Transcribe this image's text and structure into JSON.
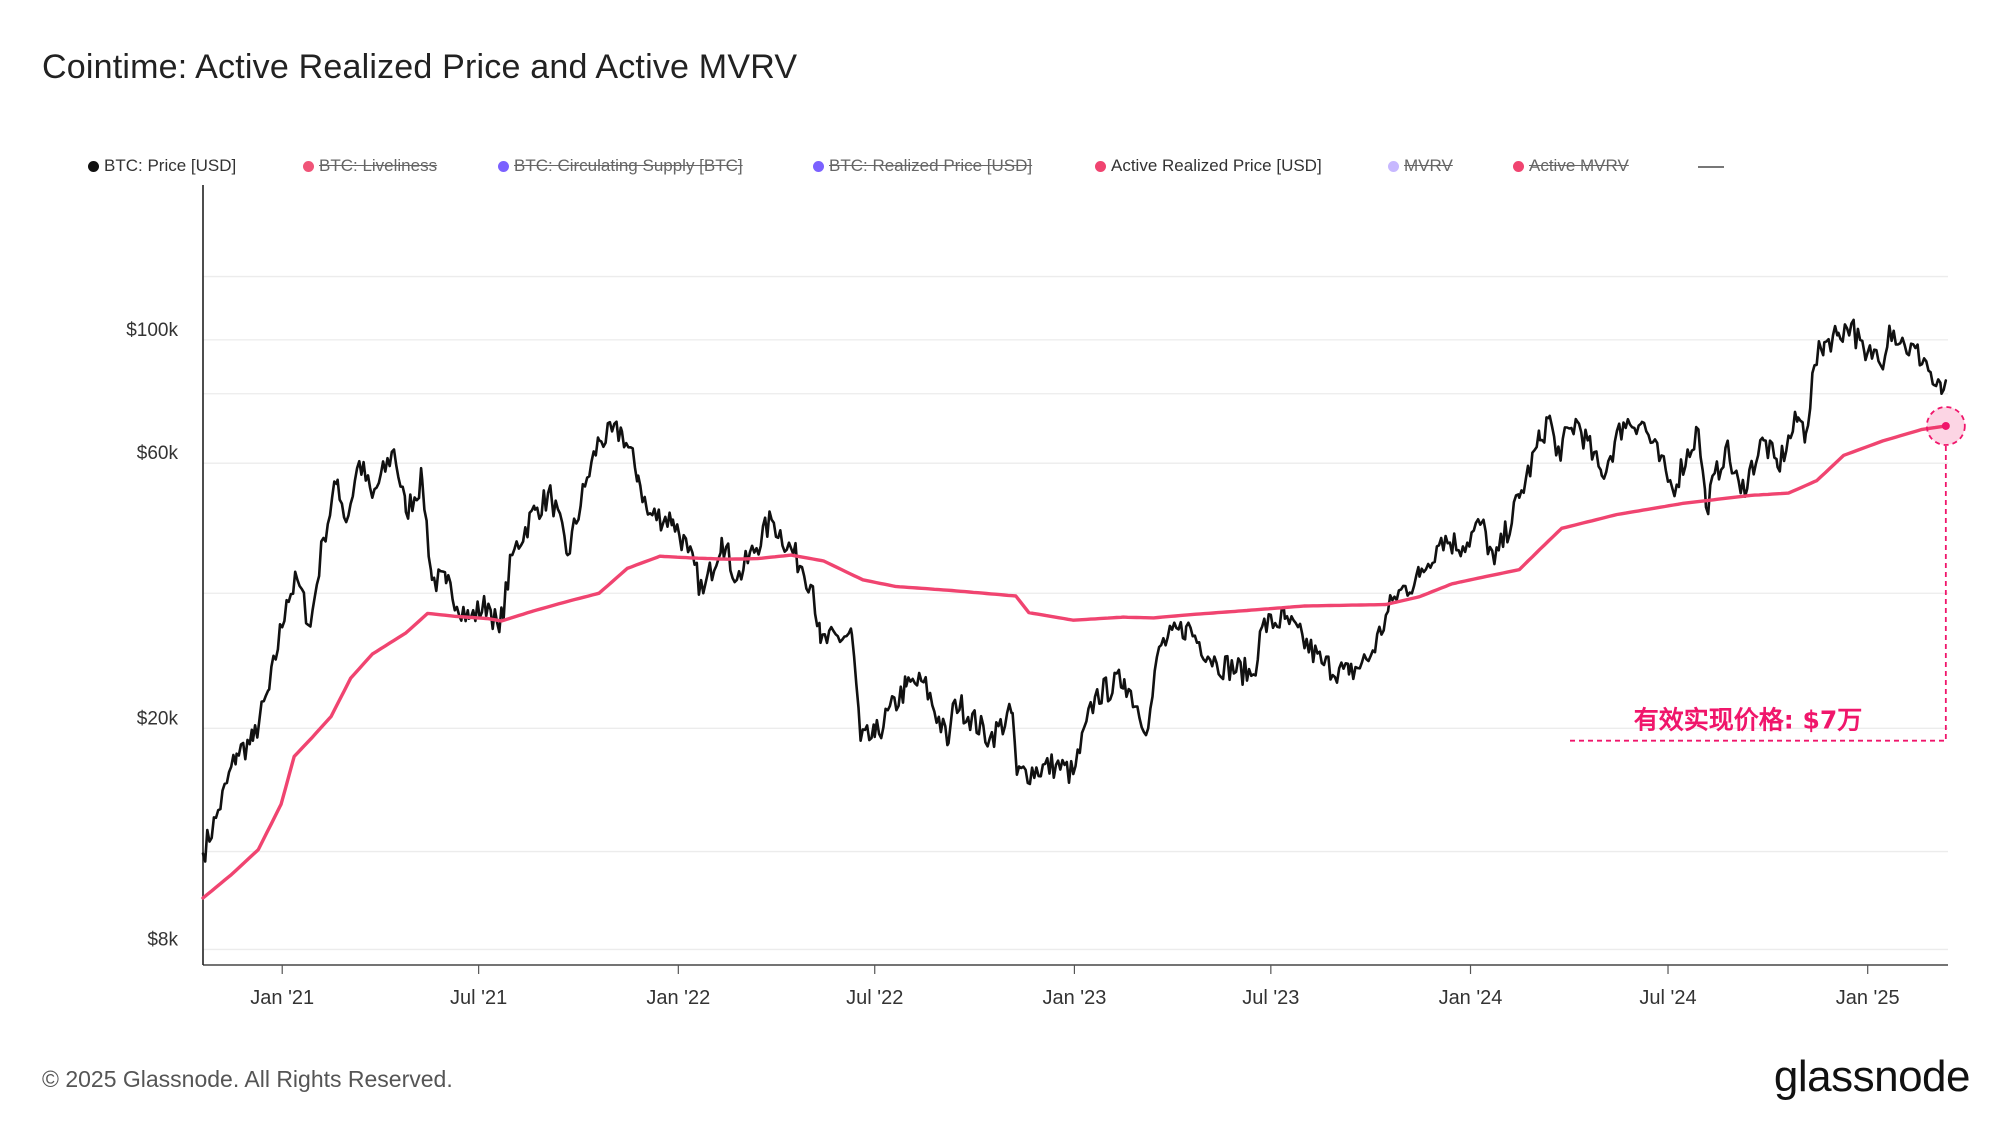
{
  "title": "Cointime: Active Realized Price and Active MVRV",
  "legend": [
    {
      "label": "BTC: Price [USD]",
      "color": "#111111",
      "active": true
    },
    {
      "label": "BTC: Liveliness",
      "color": "#f05478",
      "active": false
    },
    {
      "label": "BTC: Circulating Supply [BTC]",
      "color": "#7b61ff",
      "active": false
    },
    {
      "label": "BTC: Realized Price [USD]",
      "color": "#7b61ff",
      "active": false
    },
    {
      "label": "Active Realized Price [USD]",
      "color": "#f04470",
      "active": true
    },
    {
      "label": "MVRV",
      "color": "#c7b8ff",
      "active": false
    },
    {
      "label": "Active MVRV",
      "color": "#f04470",
      "active": false
    }
  ],
  "annotation": {
    "text": "有效实现价格: $7万",
    "color": "#f0166b"
  },
  "footer": {
    "copyright": "© 2025 Glassnode. All Rights Reserved.",
    "logo": "glassnode"
  },
  "chart_data": {
    "type": "line",
    "title": "Cointime: Active Realized Price and Active MVRV",
    "y_scale": "log",
    "ylim": [
      7500,
      190000
    ],
    "xlim": [
      "2020-10-20",
      "2025-03-16"
    ],
    "y_ticks": [
      {
        "value": 8000,
        "label": "$8k"
      },
      {
        "value": 20000,
        "label": "$20k"
      },
      {
        "value": 60000,
        "label": "$60k"
      },
      {
        "value": 100000,
        "label": "$100k"
      }
    ],
    "x_ticks": [
      {
        "date": "2021-01-01",
        "label": "Jan '21"
      },
      {
        "date": "2021-07-01",
        "label": "Jul '21"
      },
      {
        "date": "2022-01-01",
        "label": "Jan '22"
      },
      {
        "date": "2022-07-01",
        "label": "Jul '22"
      },
      {
        "date": "2023-01-01",
        "label": "Jan '23"
      },
      {
        "date": "2023-07-01",
        "label": "Jul '23"
      },
      {
        "date": "2024-01-01",
        "label": "Jan '24"
      },
      {
        "date": "2024-07-01",
        "label": "Jul '24"
      },
      {
        "date": "2025-01-01",
        "label": "Jan '25"
      }
    ],
    "gridlines": [
      8000,
      12000,
      20000,
      35000,
      60000,
      80000,
      100000,
      130000
    ],
    "series": [
      {
        "name": "BTC: Price [USD]",
        "color": "#111111",
        "points": [
          [
            "2020-10-20",
            11900
          ],
          [
            "2020-11-01",
            13800
          ],
          [
            "2020-11-20",
            18000
          ],
          [
            "2020-12-05",
            19000
          ],
          [
            "2020-12-20",
            23500
          ],
          [
            "2021-01-05",
            34000
          ],
          [
            "2021-01-15",
            37000
          ],
          [
            "2021-01-27",
            30500
          ],
          [
            "2021-02-08",
            44000
          ],
          [
            "2021-02-21",
            56000
          ],
          [
            "2021-03-01",
            47000
          ],
          [
            "2021-03-13",
            60500
          ],
          [
            "2021-03-25",
            52000
          ],
          [
            "2021-04-14",
            63500
          ],
          [
            "2021-04-25",
            49000
          ],
          [
            "2021-05-10",
            56000
          ],
          [
            "2021-05-19",
            37000
          ],
          [
            "2021-06-01",
            36500
          ],
          [
            "2021-06-22",
            31500
          ],
          [
            "2021-07-10",
            33500
          ],
          [
            "2021-07-20",
            29800
          ],
          [
            "2021-08-01",
            41000
          ],
          [
            "2021-08-22",
            49500
          ],
          [
            "2021-09-06",
            52500
          ],
          [
            "2021-09-21",
            41000
          ],
          [
            "2021-10-07",
            54500
          ],
          [
            "2021-10-20",
            66000
          ],
          [
            "2021-11-10",
            68500
          ],
          [
            "2021-11-25",
            57000
          ],
          [
            "2021-12-04",
            48500
          ],
          [
            "2021-12-27",
            47500
          ],
          [
            "2022-01-10",
            41500
          ],
          [
            "2022-01-24",
            35000
          ],
          [
            "2022-02-10",
            44000
          ],
          [
            "2022-02-24",
            37000
          ],
          [
            "2022-03-28",
            47500
          ],
          [
            "2022-04-25",
            39000
          ],
          [
            "2022-05-05",
            36000
          ],
          [
            "2022-05-12",
            28500
          ],
          [
            "2022-06-10",
            29500
          ],
          [
            "2022-06-18",
            19000
          ],
          [
            "2022-07-01",
            19300
          ],
          [
            "2022-07-30",
            23800
          ],
          [
            "2022-08-15",
            24200
          ],
          [
            "2022-09-07",
            18800
          ],
          [
            "2022-09-13",
            22500
          ],
          [
            "2022-10-15",
            19200
          ],
          [
            "2022-11-05",
            21300
          ],
          [
            "2022-11-09",
            16500
          ],
          [
            "2022-12-15",
            17200
          ],
          [
            "2022-12-31",
            16550
          ],
          [
            "2023-01-20",
            22800
          ],
          [
            "2023-02-16",
            24500
          ],
          [
            "2023-03-10",
            20000
          ],
          [
            "2023-03-20",
            28000
          ],
          [
            "2023-04-14",
            30500
          ],
          [
            "2023-05-12",
            26200
          ],
          [
            "2023-06-15",
            25000
          ],
          [
            "2023-06-23",
            30500
          ],
          [
            "2023-07-14",
            31500
          ],
          [
            "2023-08-17",
            26200
          ],
          [
            "2023-09-11",
            25000
          ],
          [
            "2023-10-01",
            27000
          ],
          [
            "2023-10-23",
            34500
          ],
          [
            "2023-11-15",
            37500
          ],
          [
            "2023-12-05",
            44000
          ],
          [
            "2023-12-25",
            42500
          ],
          [
            "2024-01-11",
            46800
          ],
          [
            "2024-01-23",
            39500
          ],
          [
            "2024-02-15",
            52000
          ],
          [
            "2024-03-05",
            66000
          ],
          [
            "2024-03-14",
            73000
          ],
          [
            "2024-03-20",
            62000
          ],
          [
            "2024-04-08",
            71500
          ],
          [
            "2024-05-01",
            57000
          ],
          [
            "2024-05-21",
            71000
          ],
          [
            "2024-06-07",
            71200
          ],
          [
            "2024-07-05",
            54000
          ],
          [
            "2024-07-29",
            69000
          ],
          [
            "2024-08-05",
            50000
          ],
          [
            "2024-08-23",
            64000
          ],
          [
            "2024-09-06",
            53000
          ],
          [
            "2024-09-27",
            66000
          ],
          [
            "2024-10-10",
            59000
          ],
          [
            "2024-10-29",
            72500
          ],
          [
            "2024-11-05",
            67800
          ],
          [
            "2024-11-13",
            90000
          ],
          [
            "2024-11-22",
            99000
          ],
          [
            "2024-12-05",
            103000
          ],
          [
            "2024-12-17",
            107000
          ],
          [
            "2024-12-30",
            92000
          ],
          [
            "2025-01-07",
            96000
          ],
          [
            "2025-01-13",
            90000
          ],
          [
            "2025-01-21",
            106000
          ],
          [
            "2025-02-04",
            98000
          ],
          [
            "2025-02-24",
            91500
          ],
          [
            "2025-03-03",
            83000
          ],
          [
            "2025-03-10",
            80000
          ],
          [
            "2025-03-14",
            84500
          ]
        ]
      },
      {
        "name": "Active Realized Price [USD]",
        "color": "#f04470",
        "points": [
          [
            "2020-10-20",
            9900
          ],
          [
            "2020-11-15",
            10900
          ],
          [
            "2020-12-10",
            12100
          ],
          [
            "2020-12-31",
            14600
          ],
          [
            "2021-01-12",
            17800
          ],
          [
            "2021-01-28",
            19200
          ],
          [
            "2021-02-15",
            21000
          ],
          [
            "2021-03-05",
            24600
          ],
          [
            "2021-03-25",
            27200
          ],
          [
            "2021-04-25",
            29700
          ],
          [
            "2021-05-15",
            32200
          ],
          [
            "2021-06-10",
            31800
          ],
          [
            "2021-07-10",
            31500
          ],
          [
            "2021-07-22",
            31200
          ],
          [
            "2021-08-20",
            32500
          ],
          [
            "2021-09-20",
            33800
          ],
          [
            "2021-10-20",
            35000
          ],
          [
            "2021-11-15",
            38800
          ],
          [
            "2021-12-15",
            40800
          ],
          [
            "2022-01-15",
            40500
          ],
          [
            "2022-02-15",
            40300
          ],
          [
            "2022-03-15",
            40400
          ],
          [
            "2022-04-15",
            41000
          ],
          [
            "2022-05-15",
            40000
          ],
          [
            "2022-06-20",
            37000
          ],
          [
            "2022-07-20",
            36000
          ],
          [
            "2022-09-10",
            35400
          ],
          [
            "2022-11-08",
            34600
          ],
          [
            "2022-11-20",
            32300
          ],
          [
            "2022-12-31",
            31300
          ],
          [
            "2023-02-15",
            31700
          ],
          [
            "2023-03-15",
            31600
          ],
          [
            "2023-04-15",
            32000
          ],
          [
            "2023-06-01",
            32500
          ],
          [
            "2023-08-01",
            33200
          ],
          [
            "2023-10-15",
            33400
          ],
          [
            "2023-11-15",
            34500
          ],
          [
            "2023-12-15",
            36400
          ],
          [
            "2024-01-15",
            37500
          ],
          [
            "2024-02-15",
            38600
          ],
          [
            "2024-03-05",
            42000
          ],
          [
            "2024-03-25",
            45800
          ],
          [
            "2024-05-15",
            48500
          ],
          [
            "2024-07-15",
            50800
          ],
          [
            "2024-09-15",
            52500
          ],
          [
            "2024-10-20",
            53000
          ],
          [
            "2024-11-15",
            55800
          ],
          [
            "2024-12-10",
            62000
          ],
          [
            "2025-01-15",
            65800
          ],
          [
            "2025-02-20",
            69000
          ],
          [
            "2025-03-14",
            70000
          ]
        ]
      }
    ]
  }
}
